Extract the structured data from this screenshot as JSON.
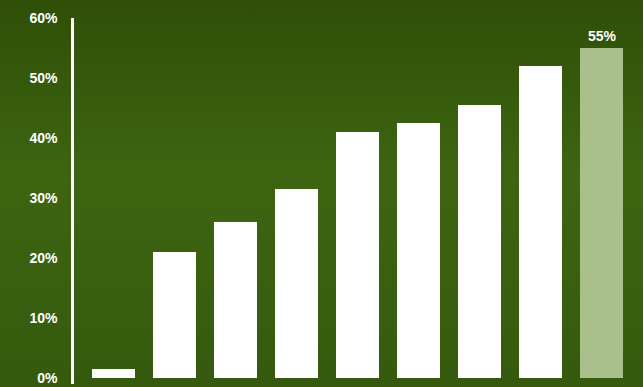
{
  "chart_data": {
    "type": "bar",
    "categories": [
      null,
      null,
      null,
      null,
      null,
      null,
      null,
      null,
      null
    ],
    "values": [
      1.5,
      21,
      26,
      31.5,
      41,
      42.5,
      45.5,
      52,
      55
    ],
    "value_labels": [
      null,
      null,
      null,
      null,
      null,
      null,
      null,
      null,
      "55%"
    ],
    "data_labels": true,
    "colors": [
      "#ffffff",
      "#ffffff",
      "#ffffff",
      "#ffffff",
      "#ffffff",
      "#ffffff",
      "#ffffff",
      "#ffffff",
      "#a9c08a"
    ],
    "ylim": [
      0,
      60
    ],
    "yticks": [
      {
        "value": 0,
        "label": "0%"
      },
      {
        "value": 10,
        "label": "10%"
      },
      {
        "value": 20,
        "label": "20%"
      },
      {
        "value": 30,
        "label": "30%"
      },
      {
        "value": 40,
        "label": "40%"
      },
      {
        "value": 50,
        "label": "50%"
      },
      {
        "value": 60,
        "label": "60%"
      }
    ],
    "grid": false,
    "tick_labels": "y"
  }
}
